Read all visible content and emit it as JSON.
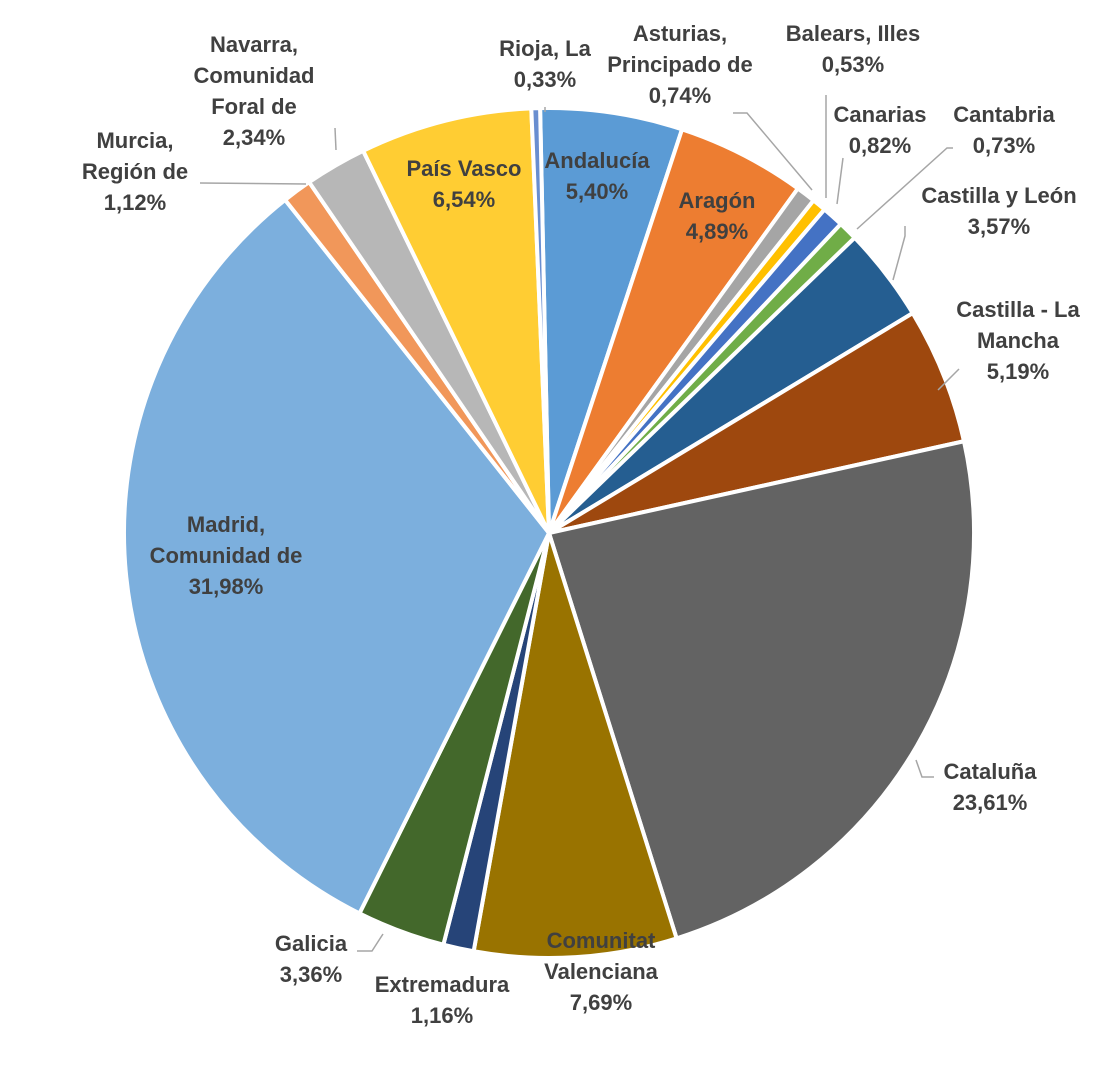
{
  "chart_data": {
    "type": "pie",
    "start_angle_deg": -1.2,
    "direction": "clockwise",
    "slices": [
      {
        "name": "Andalucía",
        "label_lines": [
          "Andalucía"
        ],
        "value": 5.4,
        "value_label": "5,40%",
        "color": "#5b9bd5",
        "label_style": "inside"
      },
      {
        "name": "Aragón",
        "label_lines": [
          "Aragón"
        ],
        "value": 4.89,
        "value_label": "4,89%",
        "color": "#ed7d31",
        "label_style": "inside"
      },
      {
        "name": "Asturias, Principado de",
        "label_lines": [
          "Asturias,",
          "Principado de"
        ],
        "value": 0.74,
        "value_label": "0,74%",
        "color": "#a5a5a5",
        "label_style": "callout"
      },
      {
        "name": "Balears, Illes",
        "label_lines": [
          "Balears, Illes"
        ],
        "value": 0.53,
        "value_label": "0,53%",
        "color": "#ffc000",
        "label_style": "callout"
      },
      {
        "name": "Canarias",
        "label_lines": [
          "Canarias"
        ],
        "value": 0.82,
        "value_label": "0,82%",
        "color": "#4472c4",
        "label_style": "callout"
      },
      {
        "name": "Cantabria",
        "label_lines": [
          "Cantabria"
        ],
        "value": 0.73,
        "value_label": "0,73%",
        "color": "#70ad47",
        "label_style": "callout"
      },
      {
        "name": "Castilla y León",
        "label_lines": [
          "Castilla y León"
        ],
        "value": 3.57,
        "value_label": "3,57%",
        "color": "#255e91",
        "label_style": "callout"
      },
      {
        "name": "Castilla - La Mancha",
        "label_lines": [
          "Castilla - La",
          "Mancha"
        ],
        "value": 5.19,
        "value_label": "5,19%",
        "color": "#9e480e",
        "label_style": "callout"
      },
      {
        "name": "Cataluña",
        "label_lines": [
          "Cataluña"
        ],
        "value": 23.61,
        "value_label": "23,61%",
        "color": "#636363",
        "label_style": "callout"
      },
      {
        "name": "Comunitat Valenciana",
        "label_lines": [
          "Comunitat",
          "Valenciana"
        ],
        "value": 7.69,
        "value_label": "7,69%",
        "color": "#997300",
        "label_style": "edge"
      },
      {
        "name": "Extremadura",
        "label_lines": [
          "Extremadura"
        ],
        "value": 1.16,
        "value_label": "1,16%",
        "color": "#264478",
        "label_style": "callout"
      },
      {
        "name": "Galicia",
        "label_lines": [
          "Galicia"
        ],
        "value": 3.36,
        "value_label": "3,36%",
        "color": "#43682b",
        "label_style": "callout"
      },
      {
        "name": "Madrid, Comunidad de",
        "label_lines": [
          "Madrid,",
          "Comunidad de"
        ],
        "value": 31.98,
        "value_label": "31,98%",
        "color": "#7cafdd",
        "label_style": "inside"
      },
      {
        "name": "Murcia, Región de",
        "label_lines": [
          "Murcia,",
          "Región de"
        ],
        "value": 1.12,
        "value_label": "1,12%",
        "color": "#f1975a",
        "label_style": "callout"
      },
      {
        "name": "Navarra, Comunidad Foral de",
        "label_lines": [
          "Navarra,",
          "Comunidad",
          "Foral de"
        ],
        "value": 2.34,
        "value_label": "2,34%",
        "color": "#b7b7b7",
        "label_style": "callout"
      },
      {
        "name": "País Vasco",
        "label_lines": [
          "País Vasco"
        ],
        "value": 6.54,
        "value_label": "6,54%",
        "color": "#ffcd33",
        "label_style": "inside"
      },
      {
        "name": "Rioja, La",
        "label_lines": [
          "Rioja, La"
        ],
        "value": 0.33,
        "value_label": "0,33%",
        "color": "#698ed0",
        "label_style": "callout"
      }
    ]
  }
}
